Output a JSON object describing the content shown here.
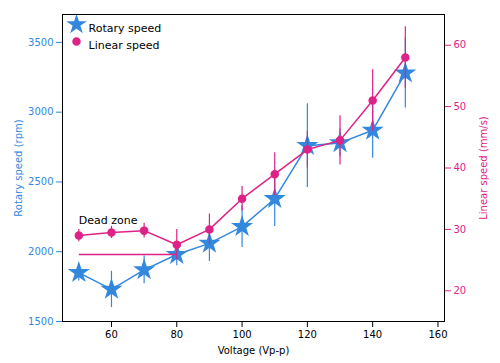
{
  "chart_data": {
    "type": "line",
    "xlabel": "Voltage (Vp-p)",
    "ylabel": "Rotary speed (rpm)",
    "y2label": "Linear speed (mm/s)",
    "x": [
      50,
      60,
      70,
      80,
      90,
      100,
      110,
      120,
      130,
      140,
      150
    ],
    "series": [
      {
        "name": "Rotary speed",
        "color": "#3388dd",
        "marker": "star",
        "values": [
          1850,
          1730,
          1870,
          1980,
          2060,
          2180,
          2380,
          2760,
          2780,
          2870,
          3280
        ],
        "errors": [
          60,
          130,
          100,
          80,
          130,
          150,
          200,
          300,
          100,
          200,
          250
        ]
      },
      {
        "name": "Linear speed",
        "color": "#dd2288",
        "marker": "circle",
        "axis": "y2",
        "values": [
          29.0,
          29.5,
          29.8,
          27.5,
          30.0,
          35.0,
          39.0,
          43.0,
          44.5,
          51.0,
          58.0
        ],
        "errors": [
          1.0,
          1.0,
          1.2,
          2.5,
          2.5,
          2.0,
          3.5,
          3.0,
          4.0,
          5.0,
          5.0
        ]
      }
    ],
    "xlim": [
      45,
      162
    ],
    "xticks": [
      60,
      80,
      100,
      120,
      140,
      160
    ],
    "ylim": [
      1500,
      3700
    ],
    "yticks": [
      1500,
      2000,
      2500,
      3000,
      3500
    ],
    "y2lim": [
      15,
      65
    ],
    "y2ticks": [
      20,
      30,
      40,
      50,
      60
    ],
    "annotations": [
      {
        "text": "Dead zone",
        "x": 50,
        "y": 2200,
        "bracket": [
          50,
          80
        ],
        "bracket_y": 1980,
        "color": "#dd2288"
      }
    ],
    "legend": "upper left",
    "grid": false
  }
}
